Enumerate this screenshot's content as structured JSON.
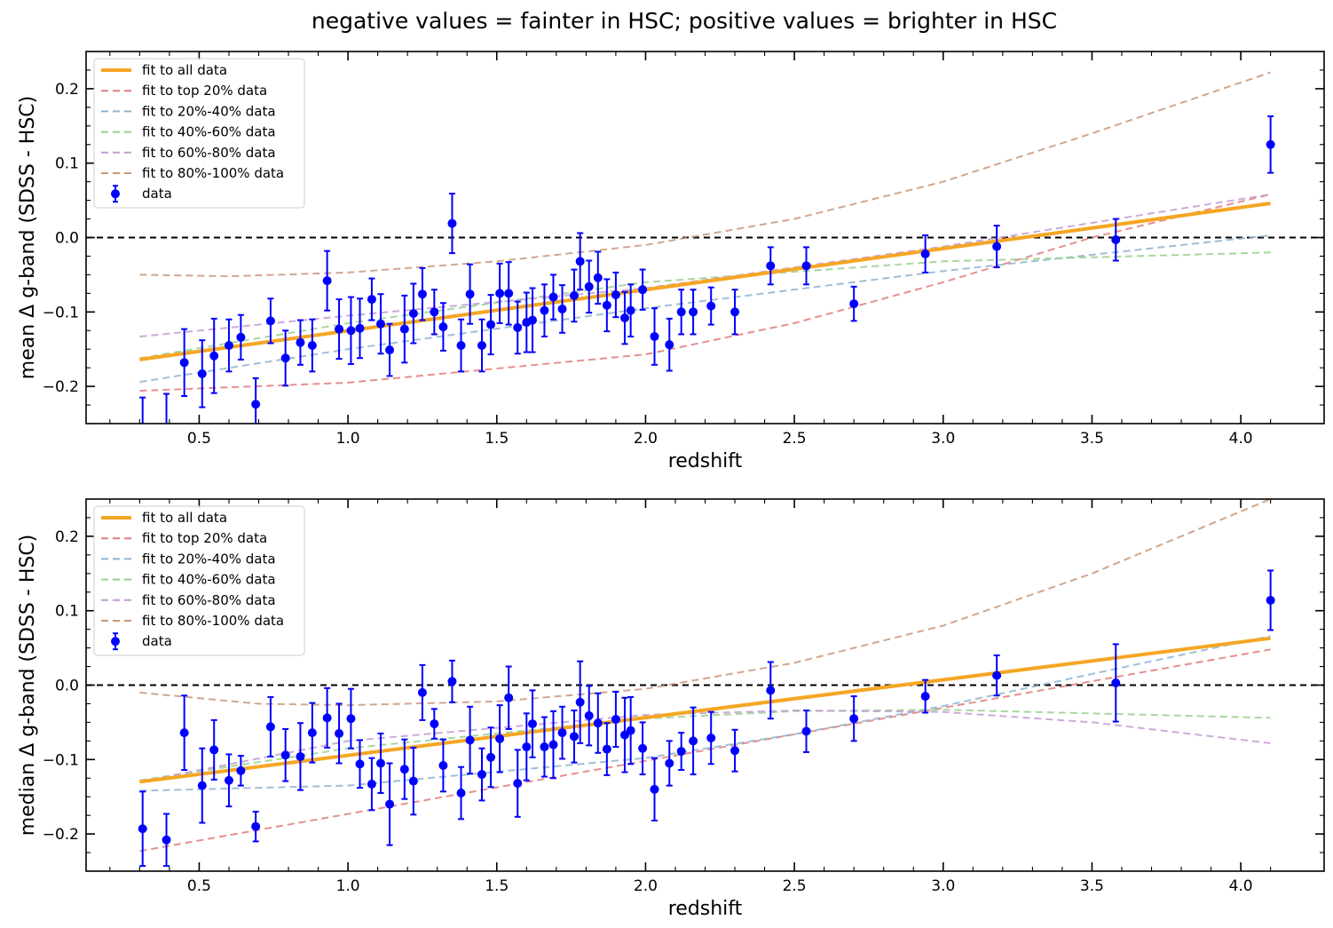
{
  "figure": {
    "title": "negative values = fainter in HSC; positive values = brighter in HSC"
  },
  "colors": {
    "fit_all": "#f5a623",
    "top20": "#e07b7b",
    "p20_40": "#8fb3d0",
    "p40_60": "#98d08c",
    "p60_80": "#c39bd3",
    "p80_100": "#c9977a",
    "data": "#0000ff",
    "zero_line": "#000000"
  },
  "chart_data": [
    {
      "type": "scatter",
      "xlabel": "redshift",
      "ylabel": "mean Δ g-band (SDSS - HSC)",
      "xlim": [
        0.12,
        4.28
      ],
      "ylim": [
        -0.25,
        0.25
      ],
      "xticks": [
        "0.5",
        "1.0",
        "1.5",
        "2.0",
        "2.5",
        "3.0",
        "3.5",
        "4.0"
      ],
      "yticks": [
        "−0.2",
        "−0.1",
        "0.0",
        "0.1",
        "0.2"
      ],
      "zero_line": 0.0,
      "legend": {
        "position": "upper-left",
        "entries": [
          "fit to all data",
          "fit to top 20% data",
          "fit to 20%-40% data",
          "fit to 40%-60% data",
          "fit to 60%-80% data",
          "fit to 80%-100% data",
          "data"
        ]
      },
      "fits": [
        {
          "name": "fit to all data",
          "x": [
            0.3,
            4.1
          ],
          "y": [
            -0.164,
            0.046
          ]
        },
        {
          "name": "fit to top 20% data",
          "x": [
            0.3,
            1.0,
            2.0,
            2.5,
            3.0,
            3.5,
            4.1
          ],
          "y": [
            -0.206,
            -0.195,
            -0.157,
            -0.115,
            -0.06,
            0.0,
            0.058
          ]
        },
        {
          "name": "fit to 20%-40% data",
          "x": [
            0.3,
            1.0,
            2.0,
            3.0,
            4.1
          ],
          "y": [
            -0.194,
            -0.15,
            -0.095,
            -0.045,
            0.003
          ]
        },
        {
          "name": "fit to 40%-60% data",
          "x": [
            0.3,
            1.0,
            2.0,
            3.0,
            4.1
          ],
          "y": [
            -0.162,
            -0.115,
            -0.06,
            -0.032,
            -0.02
          ]
        },
        {
          "name": "fit to 60%-80% data",
          "x": [
            0.3,
            1.0,
            2.0,
            3.0,
            4.1
          ],
          "y": [
            -0.133,
            -0.105,
            -0.068,
            -0.012,
            0.058
          ]
        },
        {
          "name": "fit to 80%-100% data",
          "x": [
            0.3,
            0.6,
            1.0,
            1.5,
            2.0,
            2.5,
            3.0,
            3.5,
            4.1
          ],
          "y": [
            -0.05,
            -0.052,
            -0.047,
            -0.032,
            -0.01,
            0.025,
            0.075,
            0.14,
            0.222
          ]
        }
      ],
      "series": [
        {
          "name": "data",
          "x": [
            0.31,
            0.39,
            0.45,
            0.51,
            0.55,
            0.6,
            0.64,
            0.69,
            0.74,
            0.79,
            0.84,
            0.88,
            0.93,
            0.97,
            1.01,
            1.04,
            1.08,
            1.11,
            1.14,
            1.19,
            1.22,
            1.25,
            1.29,
            1.32,
            1.35,
            1.38,
            1.41,
            1.45,
            1.48,
            1.51,
            1.54,
            1.57,
            1.6,
            1.62,
            1.66,
            1.69,
            1.72,
            1.76,
            1.78,
            1.81,
            1.84,
            1.87,
            1.9,
            1.93,
            1.95,
            1.99,
            2.03,
            2.08,
            2.12,
            2.16,
            2.22,
            2.3,
            2.42,
            2.54,
            2.7,
            2.94,
            3.18,
            3.58,
            4.1
          ],
          "y": [
            -0.255,
            -0.26,
            -0.168,
            -0.183,
            -0.159,
            -0.145,
            -0.134,
            -0.224,
            -0.112,
            -0.162,
            -0.141,
            -0.145,
            -0.058,
            -0.123,
            -0.125,
            -0.122,
            -0.083,
            -0.116,
            -0.151,
            -0.123,
            -0.102,
            -0.076,
            -0.1,
            -0.12,
            0.019,
            -0.145,
            -0.076,
            -0.145,
            -0.117,
            -0.075,
            -0.075,
            -0.121,
            -0.114,
            -0.111,
            -0.098,
            -0.08,
            -0.096,
            -0.078,
            -0.032,
            -0.066,
            -0.054,
            -0.091,
            -0.077,
            -0.108,
            -0.098,
            -0.07,
            -0.133,
            -0.144,
            -0.1,
            -0.1,
            -0.092,
            -0.1,
            -0.038,
            -0.038,
            -0.089,
            -0.022,
            -0.012,
            -0.003,
            0.125
          ],
          "err": [
            0.04,
            0.05,
            0.045,
            0.045,
            0.05,
            0.035,
            0.03,
            0.035,
            0.03,
            0.037,
            0.03,
            0.035,
            0.04,
            0.04,
            0.045,
            0.04,
            0.028,
            0.04,
            0.035,
            0.045,
            0.04,
            0.035,
            0.03,
            0.032,
            0.04,
            0.035,
            0.04,
            0.035,
            0.04,
            0.04,
            0.042,
            0.035,
            0.04,
            0.043,
            0.035,
            0.03,
            0.032,
            0.035,
            0.038,
            0.035,
            0.035,
            0.035,
            0.03,
            0.035,
            0.035,
            0.027,
            0.038,
            0.035,
            0.03,
            0.03,
            0.025,
            0.03,
            0.025,
            0.025,
            0.023,
            0.025,
            0.028,
            0.028,
            0.038
          ]
        }
      ]
    },
    {
      "type": "scatter",
      "xlabel": "redshift",
      "ylabel": "median Δ g-band (SDSS - HSC)",
      "xlim": [
        0.12,
        4.28
      ],
      "ylim": [
        -0.25,
        0.25
      ],
      "xticks": [
        "0.5",
        "1.0",
        "1.5",
        "2.0",
        "2.5",
        "3.0",
        "3.5",
        "4.0"
      ],
      "yticks": [
        "−0.2",
        "−0.1",
        "0.0",
        "0.1",
        "0.2"
      ],
      "zero_line": 0.0,
      "legend": {
        "position": "upper-left",
        "entries": [
          "fit to all data",
          "fit to top 20% data",
          "fit to 20%-40% data",
          "fit to 40%-60% data",
          "fit to 60%-80% data",
          "fit to 80%-100% data",
          "data"
        ]
      },
      "fits": [
        {
          "name": "fit to all data",
          "x": [
            0.3,
            4.1
          ],
          "y": [
            -0.13,
            0.063
          ]
        },
        {
          "name": "fit to top 20% data",
          "x": [
            0.3,
            4.1
          ],
          "y": [
            -0.223,
            0.048
          ]
        },
        {
          "name": "fit to 20%-40% data",
          "x": [
            0.3,
            1.0,
            2.0,
            2.5,
            3.0,
            3.5,
            4.1
          ],
          "y": [
            -0.142,
            -0.135,
            -0.098,
            -0.066,
            -0.028,
            0.015,
            0.066
          ]
        },
        {
          "name": "fit to 40%-60% data",
          "x": [
            0.3,
            1.0,
            2.0,
            2.5,
            3.0,
            4.1
          ],
          "y": [
            -0.128,
            -0.085,
            -0.045,
            -0.035,
            -0.033,
            -0.044
          ]
        },
        {
          "name": "fit to 60%-80% data",
          "x": [
            0.3,
            1.0,
            2.0,
            2.5,
            3.0,
            3.5,
            4.1
          ],
          "y": [
            -0.13,
            -0.075,
            -0.04,
            -0.034,
            -0.036,
            -0.05,
            -0.078
          ]
        },
        {
          "name": "fit to 80%-100% data",
          "x": [
            0.3,
            0.7,
            1.0,
            1.5,
            2.0,
            2.5,
            3.0,
            3.5,
            4.1
          ],
          "y": [
            -0.01,
            -0.025,
            -0.027,
            -0.022,
            -0.005,
            0.03,
            0.08,
            0.15,
            0.25
          ]
        }
      ],
      "series": [
        {
          "name": "data",
          "x": [
            0.31,
            0.39,
            0.45,
            0.51,
            0.55,
            0.6,
            0.64,
            0.69,
            0.74,
            0.79,
            0.84,
            0.88,
            0.93,
            0.97,
            1.01,
            1.04,
            1.08,
            1.11,
            1.14,
            1.19,
            1.22,
            1.25,
            1.29,
            1.32,
            1.35,
            1.38,
            1.41,
            1.45,
            1.48,
            1.51,
            1.54,
            1.57,
            1.6,
            1.62,
            1.66,
            1.69,
            1.72,
            1.76,
            1.78,
            1.81,
            1.84,
            1.87,
            1.9,
            1.93,
            1.95,
            1.99,
            2.03,
            2.08,
            2.12,
            2.16,
            2.22,
            2.3,
            2.42,
            2.54,
            2.7,
            2.94,
            3.18,
            3.58,
            4.1
          ],
          "y": [
            -0.193,
            -0.208,
            -0.064,
            -0.135,
            -0.087,
            -0.128,
            -0.115,
            -0.19,
            -0.056,
            -0.094,
            -0.096,
            -0.064,
            -0.044,
            -0.065,
            -0.045,
            -0.106,
            -0.133,
            -0.105,
            -0.16,
            -0.113,
            -0.129,
            -0.01,
            -0.052,
            -0.108,
            0.005,
            -0.145,
            -0.074,
            -0.12,
            -0.097,
            -0.072,
            -0.017,
            -0.132,
            -0.083,
            -0.052,
            -0.083,
            -0.08,
            -0.064,
            -0.069,
            -0.023,
            -0.041,
            -0.051,
            -0.086,
            -0.046,
            -0.067,
            -0.061,
            -0.085,
            -0.14,
            -0.105,
            -0.089,
            -0.075,
            -0.071,
            -0.088,
            -0.007,
            -0.062,
            -0.045,
            -0.015,
            0.013,
            0.003,
            0.114
          ],
          "err": [
            0.05,
            0.035,
            0.05,
            0.05,
            0.04,
            0.035,
            0.02,
            0.02,
            0.04,
            0.035,
            0.045,
            0.04,
            0.04,
            0.04,
            0.04,
            0.032,
            0.035,
            0.04,
            0.055,
            0.04,
            0.045,
            0.037,
            0.02,
            0.035,
            0.028,
            0.035,
            0.045,
            0.035,
            0.04,
            0.045,
            0.042,
            0.045,
            0.045,
            0.045,
            0.04,
            0.045,
            0.035,
            0.035,
            0.055,
            0.04,
            0.04,
            0.035,
            0.037,
            0.05,
            0.045,
            0.035,
            0.042,
            0.03,
            0.025,
            0.045,
            0.035,
            0.028,
            0.038,
            0.028,
            0.03,
            0.022,
            0.027,
            0.052,
            0.04
          ]
        }
      ]
    }
  ]
}
